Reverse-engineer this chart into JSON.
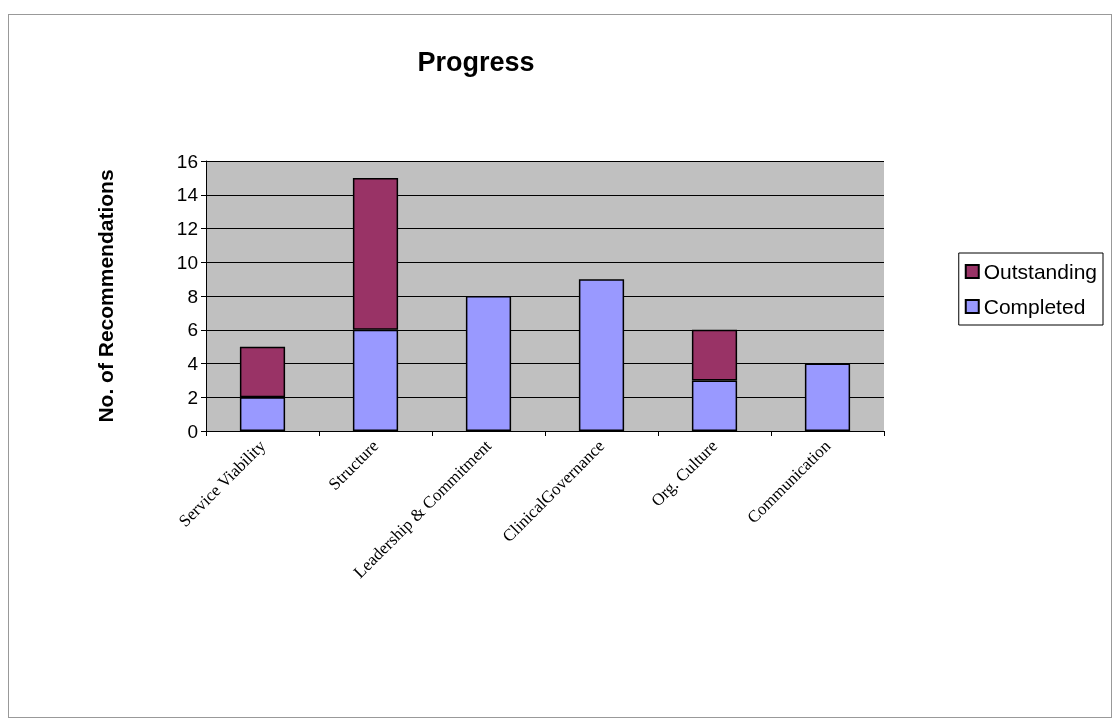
{
  "chart_data": {
    "type": "bar",
    "title": "Progress",
    "ylabel": "No. of Recommendations",
    "categories": [
      "Service Viability",
      "Structure",
      "Leadership & Commitment",
      "ClinicalGovernance",
      "Org. Culture",
      "Communication"
    ],
    "stacked": true,
    "series": [
      {
        "name": "Completed",
        "color": "#9999ff",
        "values": [
          2,
          6,
          8,
          9,
          3,
          4
        ]
      },
      {
        "name": "Outstanding",
        "color": "#993366",
        "values": [
          3,
          9,
          0,
          0,
          3,
          0
        ]
      }
    ],
    "ylim": [
      0,
      16
    ],
    "yticks": [
      0,
      2,
      4,
      6,
      8,
      10,
      12,
      14,
      16
    ],
    "grid": "y",
    "legend": "right"
  }
}
